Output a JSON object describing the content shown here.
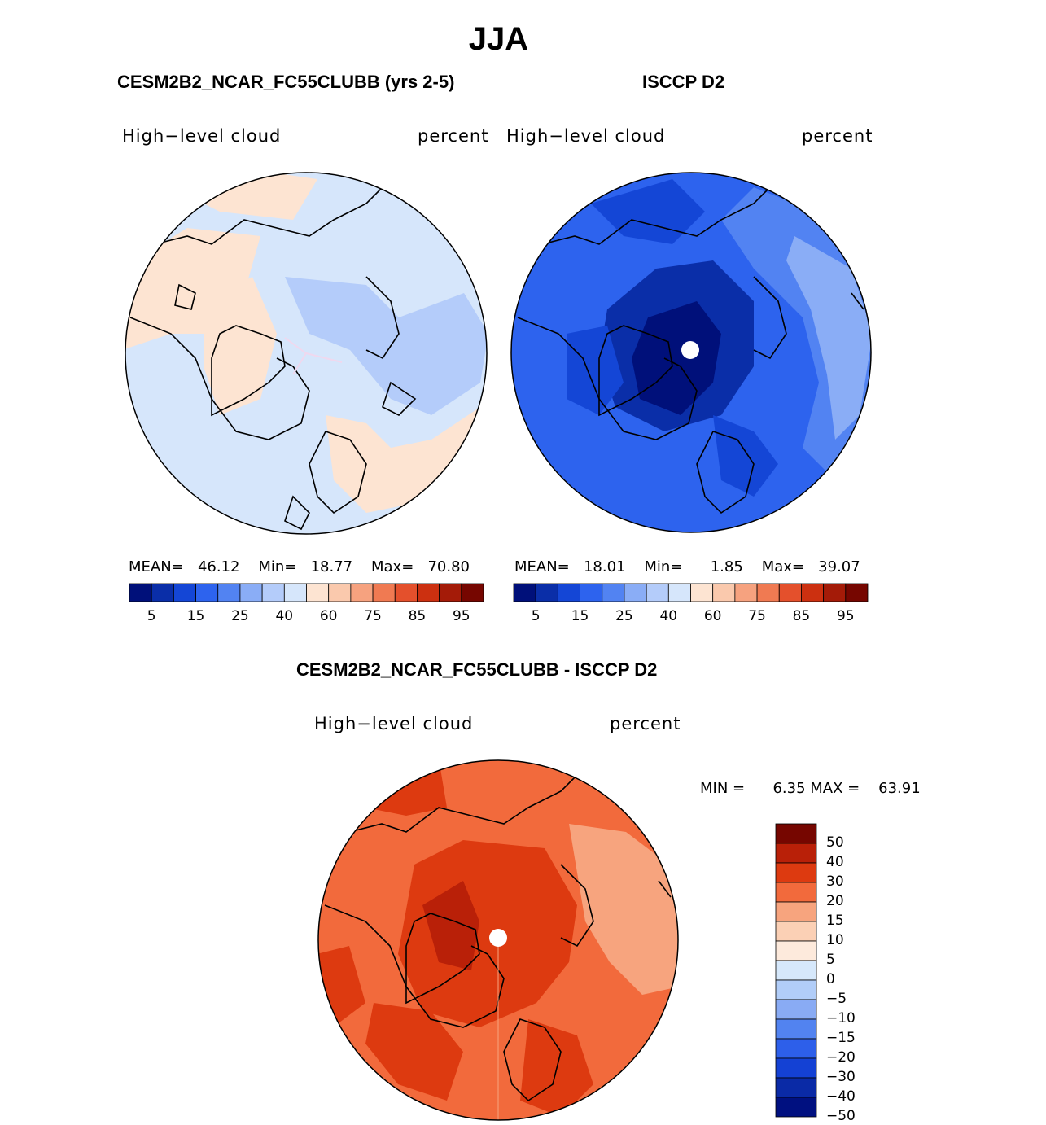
{
  "season": "JJA",
  "panels": {
    "model": {
      "title": "CESM2B2_NCAR_FC55CLUBB (yrs 2-5)",
      "variable": "High−level cloud",
      "units": "percent",
      "stats": {
        "mean_label": "MEAN=",
        "mean": "46.12",
        "min_label": "Min=",
        "min": "18.77",
        "max_label": "Max=",
        "max": "70.80"
      }
    },
    "obs": {
      "title": "ISCCP D2",
      "variable": "High−level cloud",
      "units": "percent",
      "stats": {
        "mean_label": "MEAN=",
        "mean": "18.01",
        "min_label": "Min=",
        "min": "1.85",
        "max_label": "Max=",
        "max": "39.07"
      }
    },
    "diff": {
      "title": "CESM2B2_NCAR_FC55CLUBB - ISCCP D2",
      "variable": "High−level cloud",
      "units": "percent",
      "stats": {
        "min_label": "MIN =",
        "min": "6.35",
        "max_label": "MAX =",
        "max": "63.91"
      }
    }
  },
  "colorbar_abs": {
    "colors": [
      "#00107a",
      "#0a2ea8",
      "#1446d6",
      "#2d63ee",
      "#5283f2",
      "#8aadf6",
      "#b4ccfa",
      "#d6e6fb",
      "#fde4d2",
      "#fac9ad",
      "#f6a27f",
      "#f07a52",
      "#e4502c",
      "#cc3010",
      "#a41b08",
      "#760600"
    ],
    "labels": [
      "5",
      "15",
      "25",
      "40",
      "60",
      "75",
      "85",
      "95"
    ]
  },
  "colorbar_diff": {
    "colors": [
      "#760600",
      "#b92008",
      "#dd3a10",
      "#f26a3c",
      "#f7a47e",
      "#fbd0b5",
      "#fdeadc",
      "#d6e8fb",
      "#b1cdf8",
      "#89abf4",
      "#5283f0",
      "#2d5fea",
      "#1441d4",
      "#0a2aa6",
      "#001080"
    ],
    "labels": [
      "50",
      "40",
      "30",
      "20",
      "15",
      "10",
      "5",
      "0",
      "−5",
      "−10",
      "−15",
      "−20",
      "−30",
      "−40",
      "−50"
    ]
  }
}
